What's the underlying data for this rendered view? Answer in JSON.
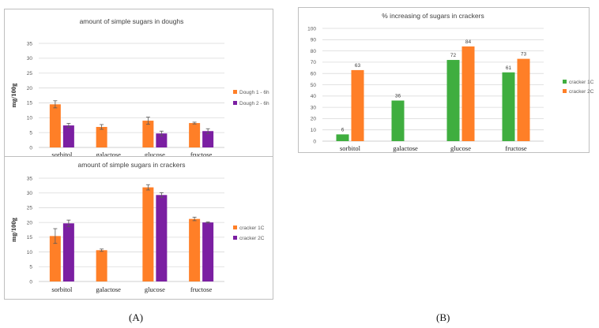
{
  "captions": {
    "a": "(A)",
    "b": "(B)"
  },
  "colors": {
    "orange": "#ff7f27",
    "purple": "#7b1fa2",
    "green": "#3fae3f",
    "grid": "#d9d9d9",
    "axis": "#bfbfbf",
    "error": "#595959"
  },
  "chart_data": [
    {
      "id": "doughs",
      "type": "bar",
      "title": "amount of simple sugars in doughs",
      "ylabel": "mg/100g",
      "xlabel": "",
      "ylim": [
        0,
        35
      ],
      "yticks": [
        0,
        5,
        10,
        15,
        20,
        25,
        30,
        35
      ],
      "grid": true,
      "legend": "right",
      "categories": [
        "sorbitol",
        "galactose",
        "glucose",
        "fructose"
      ],
      "series": [
        {
          "name": "Dough 1 - 6h",
          "color": "#ff7f27",
          "values": [
            14.5,
            6.9,
            9.0,
            8.2
          ],
          "errors": [
            1.2,
            0.8,
            1.2,
            0.3
          ]
        },
        {
          "name": "Dough 2 - 6h",
          "color": "#7b1fa2",
          "values": [
            7.4,
            null,
            4.7,
            5.5
          ],
          "errors": [
            0.7,
            null,
            0.8,
            0.8
          ]
        }
      ]
    },
    {
      "id": "crackers",
      "type": "bar",
      "title": "amount of simple sugars in crackers",
      "ylabel": "mg/100g",
      "xlabel": "",
      "ylim": [
        0,
        35
      ],
      "yticks": [
        0,
        5,
        10,
        15,
        20,
        25,
        30,
        35
      ],
      "grid": true,
      "legend": "right",
      "categories": [
        "sorbitol",
        "galactose",
        "glucose",
        "fructose"
      ],
      "series": [
        {
          "name": "cracker 1C",
          "color": "#ff7f27",
          "values": [
            15.4,
            10.6,
            31.9,
            21.2
          ],
          "errors": [
            2.5,
            0.4,
            0.9,
            0.6
          ]
        },
        {
          "name": "cracker 2C",
          "color": "#7b1fa2",
          "values": [
            19.7,
            null,
            29.3,
            20.0
          ],
          "errors": [
            1.1,
            null,
            0.8,
            0.2
          ]
        }
      ]
    },
    {
      "id": "increase",
      "type": "bar",
      "title": "% increasing of sugars in crackers",
      "ylabel": "",
      "xlabel": "",
      "ylim": [
        0,
        100
      ],
      "yticks": [
        0,
        10,
        20,
        30,
        40,
        50,
        60,
        70,
        80,
        90,
        100
      ],
      "grid": true,
      "legend": "right",
      "categories": [
        "sorbitol",
        "galactose",
        "glucose",
        "fructose"
      ],
      "series": [
        {
          "name": "cracker 1C",
          "color": "#3fae3f",
          "values": [
            6,
            36,
            72,
            61
          ],
          "labels": [
            "6",
            "36",
            "72",
            "61"
          ]
        },
        {
          "name": "cracker 2C",
          "color": "#ff7f27",
          "values": [
            63,
            null,
            84,
            73
          ],
          "labels": [
            "63",
            "",
            "84",
            "73"
          ]
        }
      ]
    }
  ]
}
